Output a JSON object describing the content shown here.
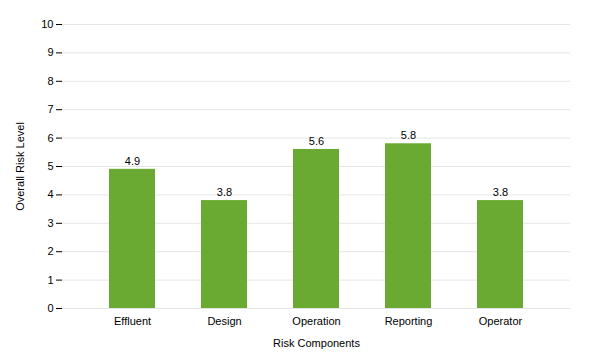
{
  "chart_data": {
    "type": "bar",
    "xlabel": "Risk Components",
    "ylabel": "Overall Risk Level",
    "categories": [
      "Effluent",
      "Design",
      "Operation",
      "Reporting",
      "Operator"
    ],
    "values": [
      4.9,
      3.8,
      5.6,
      5.8,
      3.8
    ],
    "color": "#6aaa32",
    "ylim": [
      0,
      10
    ],
    "yticks": [
      0,
      1,
      2,
      3,
      4,
      5,
      6,
      7,
      8,
      9,
      10
    ],
    "grid": true,
    "data_labels": true
  }
}
